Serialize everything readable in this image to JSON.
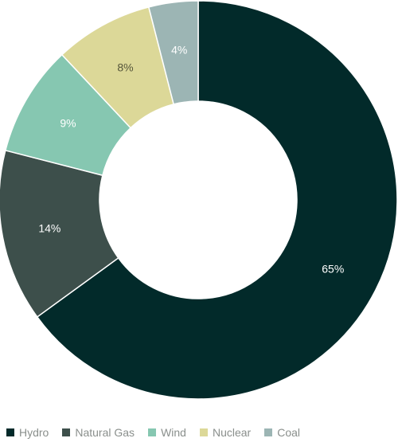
{
  "chart_data": {
    "type": "pie",
    "donut": true,
    "categories": [
      "Hydro",
      "Natural Gas",
      "Wind",
      "Nuclear",
      "Coal"
    ],
    "values": [
      65,
      14,
      9,
      8,
      4
    ],
    "labels": [
      "65%",
      "14%",
      "9%",
      "8%",
      "4%"
    ],
    "colors": [
      "#022a2a",
      "#3d4f4b",
      "#86c7b1",
      "#dcd898",
      "#9cb5b4"
    ],
    "label_colors": [
      "#ffffff",
      "#ffffff",
      "#ffffff",
      "#55553a",
      "#ffffff"
    ],
    "legend_position": "bottom-left",
    "legend_text_color": "#8a8f8c"
  }
}
